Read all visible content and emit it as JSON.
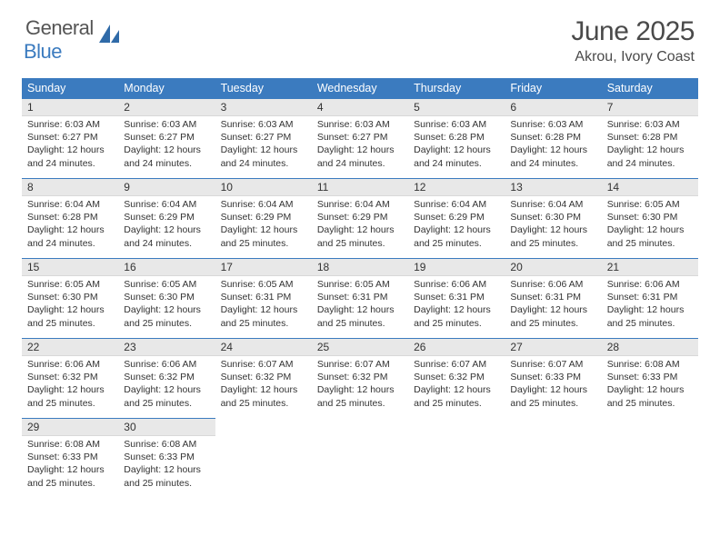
{
  "brand": {
    "general": "General",
    "blue": "Blue"
  },
  "title": {
    "month": "June 2025",
    "location": "Akrou, Ivory Coast"
  },
  "colors": {
    "header_bg": "#3b7bbf",
    "header_text": "#ffffff",
    "daynum_bg": "#e8e8e8",
    "text": "#333333",
    "rule": "#3b7bbf"
  },
  "typography": {
    "title_fontsize": 30,
    "location_fontsize": 16,
    "dayhead_fontsize": 12.5,
    "daynum_fontsize": 12,
    "content_fontsize": 10.5
  },
  "day_headers": [
    "Sunday",
    "Monday",
    "Tuesday",
    "Wednesday",
    "Thursday",
    "Friday",
    "Saturday"
  ],
  "days": [
    {
      "n": "1",
      "sr": "6:03 AM",
      "ss": "6:27 PM",
      "dl": "12 hours and 24 minutes."
    },
    {
      "n": "2",
      "sr": "6:03 AM",
      "ss": "6:27 PM",
      "dl": "12 hours and 24 minutes."
    },
    {
      "n": "3",
      "sr": "6:03 AM",
      "ss": "6:27 PM",
      "dl": "12 hours and 24 minutes."
    },
    {
      "n": "4",
      "sr": "6:03 AM",
      "ss": "6:27 PM",
      "dl": "12 hours and 24 minutes."
    },
    {
      "n": "5",
      "sr": "6:03 AM",
      "ss": "6:28 PM",
      "dl": "12 hours and 24 minutes."
    },
    {
      "n": "6",
      "sr": "6:03 AM",
      "ss": "6:28 PM",
      "dl": "12 hours and 24 minutes."
    },
    {
      "n": "7",
      "sr": "6:03 AM",
      "ss": "6:28 PM",
      "dl": "12 hours and 24 minutes."
    },
    {
      "n": "8",
      "sr": "6:04 AM",
      "ss": "6:28 PM",
      "dl": "12 hours and 24 minutes."
    },
    {
      "n": "9",
      "sr": "6:04 AM",
      "ss": "6:29 PM",
      "dl": "12 hours and 24 minutes."
    },
    {
      "n": "10",
      "sr": "6:04 AM",
      "ss": "6:29 PM",
      "dl": "12 hours and 25 minutes."
    },
    {
      "n": "11",
      "sr": "6:04 AM",
      "ss": "6:29 PM",
      "dl": "12 hours and 25 minutes."
    },
    {
      "n": "12",
      "sr": "6:04 AM",
      "ss": "6:29 PM",
      "dl": "12 hours and 25 minutes."
    },
    {
      "n": "13",
      "sr": "6:04 AM",
      "ss": "6:30 PM",
      "dl": "12 hours and 25 minutes."
    },
    {
      "n": "14",
      "sr": "6:05 AM",
      "ss": "6:30 PM",
      "dl": "12 hours and 25 minutes."
    },
    {
      "n": "15",
      "sr": "6:05 AM",
      "ss": "6:30 PM",
      "dl": "12 hours and 25 minutes."
    },
    {
      "n": "16",
      "sr": "6:05 AM",
      "ss": "6:30 PM",
      "dl": "12 hours and 25 minutes."
    },
    {
      "n": "17",
      "sr": "6:05 AM",
      "ss": "6:31 PM",
      "dl": "12 hours and 25 minutes."
    },
    {
      "n": "18",
      "sr": "6:05 AM",
      "ss": "6:31 PM",
      "dl": "12 hours and 25 minutes."
    },
    {
      "n": "19",
      "sr": "6:06 AM",
      "ss": "6:31 PM",
      "dl": "12 hours and 25 minutes."
    },
    {
      "n": "20",
      "sr": "6:06 AM",
      "ss": "6:31 PM",
      "dl": "12 hours and 25 minutes."
    },
    {
      "n": "21",
      "sr": "6:06 AM",
      "ss": "6:31 PM",
      "dl": "12 hours and 25 minutes."
    },
    {
      "n": "22",
      "sr": "6:06 AM",
      "ss": "6:32 PM",
      "dl": "12 hours and 25 minutes."
    },
    {
      "n": "23",
      "sr": "6:06 AM",
      "ss": "6:32 PM",
      "dl": "12 hours and 25 minutes."
    },
    {
      "n": "24",
      "sr": "6:07 AM",
      "ss": "6:32 PM",
      "dl": "12 hours and 25 minutes."
    },
    {
      "n": "25",
      "sr": "6:07 AM",
      "ss": "6:32 PM",
      "dl": "12 hours and 25 minutes."
    },
    {
      "n": "26",
      "sr": "6:07 AM",
      "ss": "6:32 PM",
      "dl": "12 hours and 25 minutes."
    },
    {
      "n": "27",
      "sr": "6:07 AM",
      "ss": "6:33 PM",
      "dl": "12 hours and 25 minutes."
    },
    {
      "n": "28",
      "sr": "6:08 AM",
      "ss": "6:33 PM",
      "dl": "12 hours and 25 minutes."
    },
    {
      "n": "29",
      "sr": "6:08 AM",
      "ss": "6:33 PM",
      "dl": "12 hours and 25 minutes."
    },
    {
      "n": "30",
      "sr": "6:08 AM",
      "ss": "6:33 PM",
      "dl": "12 hours and 25 minutes."
    }
  ],
  "labels": {
    "sunrise": "Sunrise:",
    "sunset": "Sunset:",
    "daylight": "Daylight:"
  }
}
